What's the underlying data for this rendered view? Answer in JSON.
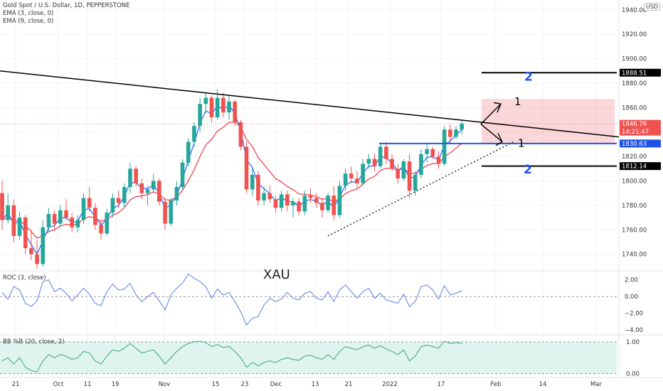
{
  "chart_data": {
    "type": "candlestick",
    "title": "Gold Spot / U.S. Dollar, 1D, PEPPERSTONE",
    "indicators": [
      "EMA (3, close, 0)",
      "EMA (9, close, 0)"
    ],
    "currency": "USD",
    "watermark": "XAU",
    "price_ticks": [
      "1940.00",
      "1920.00",
      "1900.00",
      "1880.00",
      "1860.00",
      "1840.00",
      "1820.00",
      "1800.00",
      "1780.00",
      "1760.00",
      "1740.00"
    ],
    "price_ticks_values": [
      1940,
      1920,
      1900,
      1880,
      1860,
      1840,
      1820,
      1800,
      1780,
      1760,
      1740
    ],
    "ylim": [
      1727,
      1948
    ],
    "x_ticks": [
      "21",
      "Oct",
      "11",
      "19",
      "Nov",
      "15",
      "23",
      "Dec",
      "13",
      "21",
      "2022",
      "17",
      "Feb",
      "14",
      "Mar"
    ],
    "price_tags": [
      {
        "label": "1888.51",
        "value": 1888.51,
        "color": "#000000"
      },
      {
        "label": "1846.76",
        "value": 1846.76,
        "color": "#ef5350",
        "sub": "14:21:47"
      },
      {
        "label": "1830.63",
        "value": 1830.63,
        "color": "#1e53e5"
      },
      {
        "label": "1812.14",
        "value": 1812.14,
        "color": "#000000"
      }
    ],
    "annotations": [
      {
        "text": "2",
        "color": "#1e53e5"
      },
      {
        "text": "1",
        "color": "#000000"
      },
      {
        "text": "1",
        "color": "#000000"
      },
      {
        "text": "2",
        "color": "#1e53e5"
      }
    ],
    "ohlc": [
      [
        1790,
        1800,
        1760,
        1768
      ],
      [
        1768,
        1790,
        1765,
        1780
      ],
      [
        1780,
        1785,
        1750,
        1755
      ],
      [
        1755,
        1775,
        1752,
        1770
      ],
      [
        1770,
        1772,
        1740,
        1745
      ],
      [
        1745,
        1760,
        1735,
        1740
      ],
      [
        1740,
        1752,
        1728,
        1732
      ],
      [
        1732,
        1768,
        1730,
        1762
      ],
      [
        1762,
        1778,
        1758,
        1773
      ],
      [
        1773,
        1776,
        1760,
        1765
      ],
      [
        1765,
        1780,
        1762,
        1776
      ],
      [
        1776,
        1785,
        1768,
        1770
      ],
      [
        1770,
        1774,
        1758,
        1762
      ],
      [
        1762,
        1772,
        1758,
        1768
      ],
      [
        1768,
        1790,
        1765,
        1786
      ],
      [
        1786,
        1795,
        1775,
        1778
      ],
      [
        1778,
        1782,
        1760,
        1764
      ],
      [
        1764,
        1768,
        1752,
        1757
      ],
      [
        1757,
        1777,
        1755,
        1774
      ],
      [
        1774,
        1790,
        1770,
        1786
      ],
      [
        1786,
        1792,
        1778,
        1782
      ],
      [
        1782,
        1798,
        1778,
        1795
      ],
      [
        1795,
        1815,
        1790,
        1810
      ],
      [
        1810,
        1812,
        1795,
        1798
      ],
      [
        1798,
        1802,
        1785,
        1790
      ],
      [
        1790,
        1796,
        1780,
        1793
      ],
      [
        1793,
        1806,
        1790,
        1800
      ],
      [
        1800,
        1802,
        1780,
        1783
      ],
      [
        1783,
        1786,
        1760,
        1765
      ],
      [
        1765,
        1786,
        1763,
        1784
      ],
      [
        1784,
        1800,
        1780,
        1795
      ],
      [
        1795,
        1818,
        1793,
        1815
      ],
      [
        1815,
        1835,
        1812,
        1832
      ],
      [
        1832,
        1848,
        1828,
        1845
      ],
      [
        1845,
        1868,
        1840,
        1863
      ],
      [
        1863,
        1872,
        1855,
        1868
      ],
      [
        1868,
        1870,
        1848,
        1852
      ],
      [
        1852,
        1875,
        1850,
        1868
      ],
      [
        1868,
        1872,
        1852,
        1856
      ],
      [
        1856,
        1870,
        1850,
        1865
      ],
      [
        1865,
        1866,
        1845,
        1848
      ],
      [
        1848,
        1850,
        1825,
        1828
      ],
      [
        1828,
        1832,
        1790,
        1793
      ],
      [
        1793,
        1810,
        1788,
        1805
      ],
      [
        1805,
        1808,
        1780,
        1784
      ],
      [
        1784,
        1795,
        1780,
        1790
      ],
      [
        1790,
        1796,
        1782,
        1785
      ],
      [
        1785,
        1788,
        1774,
        1778
      ],
      [
        1778,
        1792,
        1775,
        1789
      ],
      [
        1789,
        1792,
        1775,
        1780
      ],
      [
        1780,
        1786,
        1770,
        1783
      ],
      [
        1783,
        1786,
        1772,
        1775
      ],
      [
        1775,
        1792,
        1772,
        1788
      ],
      [
        1788,
        1794,
        1782,
        1786
      ],
      [
        1786,
        1790,
        1778,
        1782
      ],
      [
        1782,
        1786,
        1770,
        1776
      ],
      [
        1776,
        1790,
        1774,
        1788
      ],
      [
        1788,
        1796,
        1768,
        1772
      ],
      [
        1772,
        1800,
        1770,
        1796
      ],
      [
        1796,
        1810,
        1792,
        1806
      ],
      [
        1806,
        1812,
        1798,
        1802
      ],
      [
        1802,
        1808,
        1794,
        1798
      ],
      [
        1798,
        1818,
        1796,
        1814
      ],
      [
        1814,
        1822,
        1810,
        1818
      ],
      [
        1818,
        1822,
        1808,
        1812
      ],
      [
        1812,
        1830,
        1810,
        1828
      ],
      [
        1828,
        1832,
        1814,
        1818
      ],
      [
        1818,
        1822,
        1808,
        1810
      ],
      [
        1810,
        1814,
        1798,
        1802
      ],
      [
        1802,
        1818,
        1800,
        1816
      ],
      [
        1816,
        1822,
        1786,
        1792
      ],
      [
        1792,
        1808,
        1788,
        1805
      ],
      [
        1805,
        1826,
        1802,
        1822
      ],
      [
        1822,
        1830,
        1815,
        1826
      ],
      [
        1826,
        1828,
        1818,
        1820
      ],
      [
        1820,
        1824,
        1810,
        1814
      ],
      [
        1814,
        1845,
        1812,
        1842
      ],
      [
        1842,
        1846,
        1830,
        1836
      ],
      [
        1836,
        1845,
        1834,
        1842
      ],
      [
        1842,
        1850,
        1838,
        1846.76
      ]
    ],
    "roc_title": "ROC (3, close)",
    "roc_ticks": [
      "2.00",
      "0.00",
      "−2.00",
      "−4.00"
    ],
    "roc_ticks_values": [
      2,
      0,
      -2,
      -4
    ],
    "roc_ylim": [
      -4.5,
      3
    ],
    "roc_values": [
      0.5,
      -0.3,
      1.2,
      0.8,
      -0.8,
      -1.2,
      -0.5,
      1.8,
      2.0,
      0.6,
      1.0,
      0.4,
      -0.5,
      0.2,
      1.0,
      0.3,
      -0.8,
      -1.1,
      0.6,
      1.5,
      0.8,
      0.9,
      1.6,
      0.2,
      -0.6,
      0.0,
      0.5,
      -0.5,
      -1.6,
      0.2,
      1.0,
      1.6,
      2.7,
      2.2,
      1.8,
      1.2,
      -0.2,
      0.9,
      0.2,
      0.5,
      -0.6,
      -1.8,
      -3.4,
      -2.6,
      -2.4,
      -1.0,
      -0.2,
      -0.6,
      -0.3,
      0.5,
      -0.2,
      -0.4,
      0.4,
      0.6,
      -0.2,
      -0.4,
      0.6,
      -0.6,
      0.8,
      1.4,
      0.6,
      -0.2,
      0.6,
      1.0,
      -0.2,
      0.4,
      -0.4,
      -0.6,
      -0.8,
      0.3,
      -1.2,
      -0.6,
      1.2,
      1.4,
      0.8,
      -0.3,
      1.3,
      0.2,
      0.4,
      0.7
    ],
    "bb_title": "BB %B (20, close, 2)",
    "bb_ticks": [
      "1.00",
      "0.00"
    ],
    "bb_ticks_values": [
      1,
      0
    ],
    "bb_ylim": [
      -0.1,
      1.2
    ],
    "bb_values": [
      0.4,
      0.5,
      0.3,
      0.5,
      0.2,
      0.1,
      0.05,
      0.4,
      0.6,
      0.5,
      0.6,
      0.55,
      0.45,
      0.5,
      0.7,
      0.65,
      0.4,
      0.3,
      0.55,
      0.75,
      0.7,
      0.8,
      0.95,
      0.8,
      0.65,
      0.7,
      0.75,
      0.55,
      0.3,
      0.5,
      0.7,
      0.85,
      0.95,
      1.0,
      1.02,
      0.98,
      0.85,
      0.92,
      0.82,
      0.86,
      0.7,
      0.5,
      0.2,
      0.35,
      0.25,
      0.35,
      0.4,
      0.35,
      0.45,
      0.5,
      0.45,
      0.42,
      0.55,
      0.58,
      0.5,
      0.45,
      0.6,
      0.45,
      0.7,
      0.85,
      0.8,
      0.75,
      0.85,
      0.9,
      0.8,
      0.88,
      0.78,
      0.7,
      0.6,
      0.75,
      0.4,
      0.55,
      0.85,
      0.9,
      0.85,
      0.8,
      1.02,
      0.95,
      0.98,
      0.95
    ]
  }
}
